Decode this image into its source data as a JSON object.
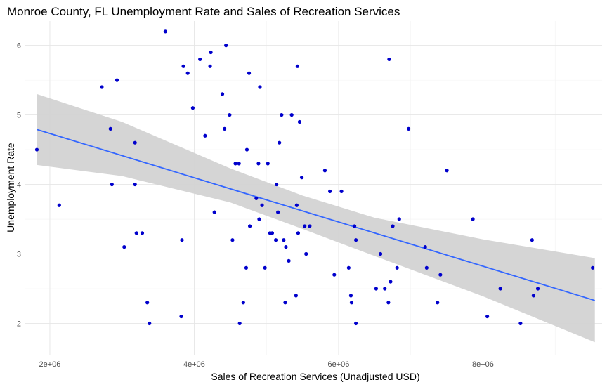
{
  "chart_data": {
    "type": "scatter",
    "title": "Monroe County, FL Unemployment Rate and Sales of Recreation Services",
    "xlabel": "Sales of Recreation Services (Unadjusted USD)",
    "ylabel": "Unemployment Rate",
    "xlim": [
      1650000,
      9650000
    ],
    "ylim": [
      1.55,
      6.35
    ],
    "x_ticks": [
      2000000,
      4000000,
      6000000,
      8000000
    ],
    "x_tick_labels": [
      "2e+06",
      "4e+06",
      "6e+06",
      "8e+06"
    ],
    "y_ticks": [
      2,
      3,
      4,
      5,
      6
    ],
    "y_tick_labels": [
      "2",
      "3",
      "4",
      "5",
      "6"
    ],
    "grid": true,
    "point_color": "#0000cc",
    "fit_line_color": "#3366ff",
    "band_color": "#d3d3d3",
    "fit_line": {
      "x": [
        1820000,
        9550000
      ],
      "y": [
        4.79,
        2.33
      ],
      "band_x": [
        1820000,
        3000000,
        4500000,
        5500000,
        6500000,
        8000000,
        9550000
      ],
      "band_upper": [
        5.3,
        4.9,
        4.23,
        3.84,
        3.52,
        3.21,
        2.94
      ],
      "band_lower": [
        4.28,
        4.12,
        3.74,
        3.36,
        2.97,
        2.39,
        1.73
      ]
    },
    "points": [
      {
        "x": 1820000,
        "y": 4.5
      },
      {
        "x": 2130000,
        "y": 3.7
      },
      {
        "x": 2720000,
        "y": 5.4
      },
      {
        "x": 2840000,
        "y": 4.8
      },
      {
        "x": 2860000,
        "y": 4.0
      },
      {
        "x": 2930000,
        "y": 5.5
      },
      {
        "x": 3030000,
        "y": 3.1
      },
      {
        "x": 3180000,
        "y": 4.6
      },
      {
        "x": 3180000,
        "y": 4.0
      },
      {
        "x": 3200000,
        "y": 3.3
      },
      {
        "x": 3280000,
        "y": 3.3
      },
      {
        "x": 3350000,
        "y": 2.3
      },
      {
        "x": 3380000,
        "y": 2.0
      },
      {
        "x": 3600000,
        "y": 6.2
      },
      {
        "x": 3820000,
        "y": 2.1
      },
      {
        "x": 3830000,
        "y": 3.2
      },
      {
        "x": 3850000,
        "y": 5.7
      },
      {
        "x": 3910000,
        "y": 5.6
      },
      {
        "x": 3980000,
        "y": 5.1
      },
      {
        "x": 4080000,
        "y": 5.8
      },
      {
        "x": 4150000,
        "y": 4.7
      },
      {
        "x": 4220000,
        "y": 5.7
      },
      {
        "x": 4230000,
        "y": 5.9
      },
      {
        "x": 4280000,
        "y": 3.6
      },
      {
        "x": 4390000,
        "y": 5.3
      },
      {
        "x": 4420000,
        "y": 4.8
      },
      {
        "x": 4440000,
        "y": 6.0
      },
      {
        "x": 4490000,
        "y": 5.0
      },
      {
        "x": 4530000,
        "y": 3.2
      },
      {
        "x": 4570000,
        "y": 4.3
      },
      {
        "x": 4620000,
        "y": 4.3
      },
      {
        "x": 4630000,
        "y": 2.0
      },
      {
        "x": 4680000,
        "y": 2.3
      },
      {
        "x": 4720000,
        "y": 2.8
      },
      {
        "x": 4730000,
        "y": 4.5
      },
      {
        "x": 4760000,
        "y": 5.6
      },
      {
        "x": 4770000,
        "y": 3.4
      },
      {
        "x": 4860000,
        "y": 3.8
      },
      {
        "x": 4890000,
        "y": 4.3
      },
      {
        "x": 4900000,
        "y": 3.5
      },
      {
        "x": 4910000,
        "y": 5.4
      },
      {
        "x": 4940000,
        "y": 3.7
      },
      {
        "x": 4980000,
        "y": 2.8
      },
      {
        "x": 5020000,
        "y": 4.3
      },
      {
        "x": 5050000,
        "y": 3.3
      },
      {
        "x": 5080000,
        "y": 3.3
      },
      {
        "x": 5130000,
        "y": 3.2
      },
      {
        "x": 5140000,
        "y": 4.0
      },
      {
        "x": 5160000,
        "y": 3.6
      },
      {
        "x": 5180000,
        "y": 4.6
      },
      {
        "x": 5210000,
        "y": 5.0
      },
      {
        "x": 5240000,
        "y": 3.2
      },
      {
        "x": 5260000,
        "y": 2.3
      },
      {
        "x": 5270000,
        "y": 3.1
      },
      {
        "x": 5310000,
        "y": 2.9
      },
      {
        "x": 5350000,
        "y": 5.0
      },
      {
        "x": 5410000,
        "y": 2.4
      },
      {
        "x": 5420000,
        "y": 3.7
      },
      {
        "x": 5430000,
        "y": 5.7
      },
      {
        "x": 5440000,
        "y": 3.3
      },
      {
        "x": 5460000,
        "y": 4.9
      },
      {
        "x": 5490000,
        "y": 4.1
      },
      {
        "x": 5530000,
        "y": 3.4
      },
      {
        "x": 5550000,
        "y": 3.0
      },
      {
        "x": 5600000,
        "y": 3.4
      },
      {
        "x": 5810000,
        "y": 4.2
      },
      {
        "x": 5880000,
        "y": 3.9
      },
      {
        "x": 5940000,
        "y": 2.7
      },
      {
        "x": 6040000,
        "y": 3.9
      },
      {
        "x": 6140000,
        "y": 2.8
      },
      {
        "x": 6170000,
        "y": 2.4
      },
      {
        "x": 6180000,
        "y": 2.3
      },
      {
        "x": 6220000,
        "y": 3.4
      },
      {
        "x": 6240000,
        "y": 3.2
      },
      {
        "x": 6240000,
        "y": 2.0
      },
      {
        "x": 6520000,
        "y": 2.5
      },
      {
        "x": 6580000,
        "y": 3.0
      },
      {
        "x": 6640000,
        "y": 2.5
      },
      {
        "x": 6690000,
        "y": 2.3
      },
      {
        "x": 6700000,
        "y": 5.8
      },
      {
        "x": 6720000,
        "y": 2.6
      },
      {
        "x": 6750000,
        "y": 3.4
      },
      {
        "x": 6810000,
        "y": 2.8
      },
      {
        "x": 6840000,
        "y": 3.5
      },
      {
        "x": 6970000,
        "y": 4.8
      },
      {
        "x": 7200000,
        "y": 3.1
      },
      {
        "x": 7220000,
        "y": 2.8
      },
      {
        "x": 7370000,
        "y": 2.3
      },
      {
        "x": 7410000,
        "y": 2.7
      },
      {
        "x": 7500000,
        "y": 4.2
      },
      {
        "x": 7860000,
        "y": 3.5
      },
      {
        "x": 8060000,
        "y": 2.1
      },
      {
        "x": 8240000,
        "y": 2.5
      },
      {
        "x": 8520000,
        "y": 2.0
      },
      {
        "x": 8680000,
        "y": 3.2
      },
      {
        "x": 8700000,
        "y": 2.4
      },
      {
        "x": 8760000,
        "y": 2.5
      },
      {
        "x": 9520000,
        "y": 2.8
      }
    ]
  }
}
